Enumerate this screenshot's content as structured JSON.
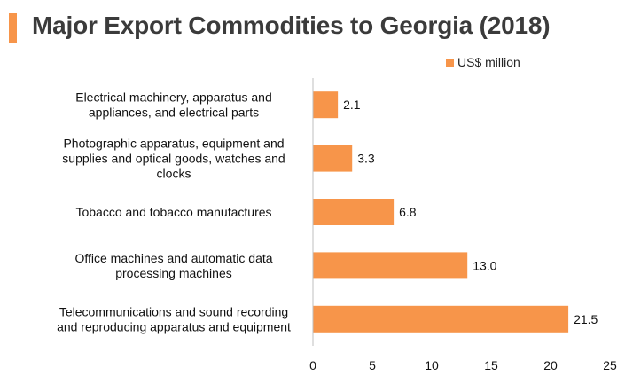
{
  "title": "Major Export Commodities to Georgia (2018)",
  "colors": {
    "accent": "#f7954a",
    "bar": "#f7954a",
    "axis": "#bfbfbf"
  },
  "chart_data": {
    "type": "bar",
    "orientation": "horizontal",
    "categories": [
      [
        "Electrical machinery, apparatus and",
        "appliances, and electrical parts"
      ],
      [
        "Photographic apparatus, equipment and",
        "supplies and optical goods, watches and",
        "clocks"
      ],
      [
        "Tobacco and tobacco manufactures"
      ],
      [
        "Office machines and automatic data",
        "processing machines"
      ],
      [
        "Telecommunications and sound recording",
        "and reproducing apparatus and equipment"
      ]
    ],
    "series": [
      {
        "name": "US$ million",
        "values": [
          2.1,
          3.3,
          6.8,
          13.0,
          21.5
        ],
        "labels": [
          "2.1",
          "3.3",
          "6.8",
          "13.0",
          "21.5"
        ]
      }
    ],
    "xlim": [
      0,
      25
    ],
    "xticks": [
      0,
      5,
      10,
      15,
      20,
      25
    ],
    "grid": false,
    "legend": "top-right"
  }
}
